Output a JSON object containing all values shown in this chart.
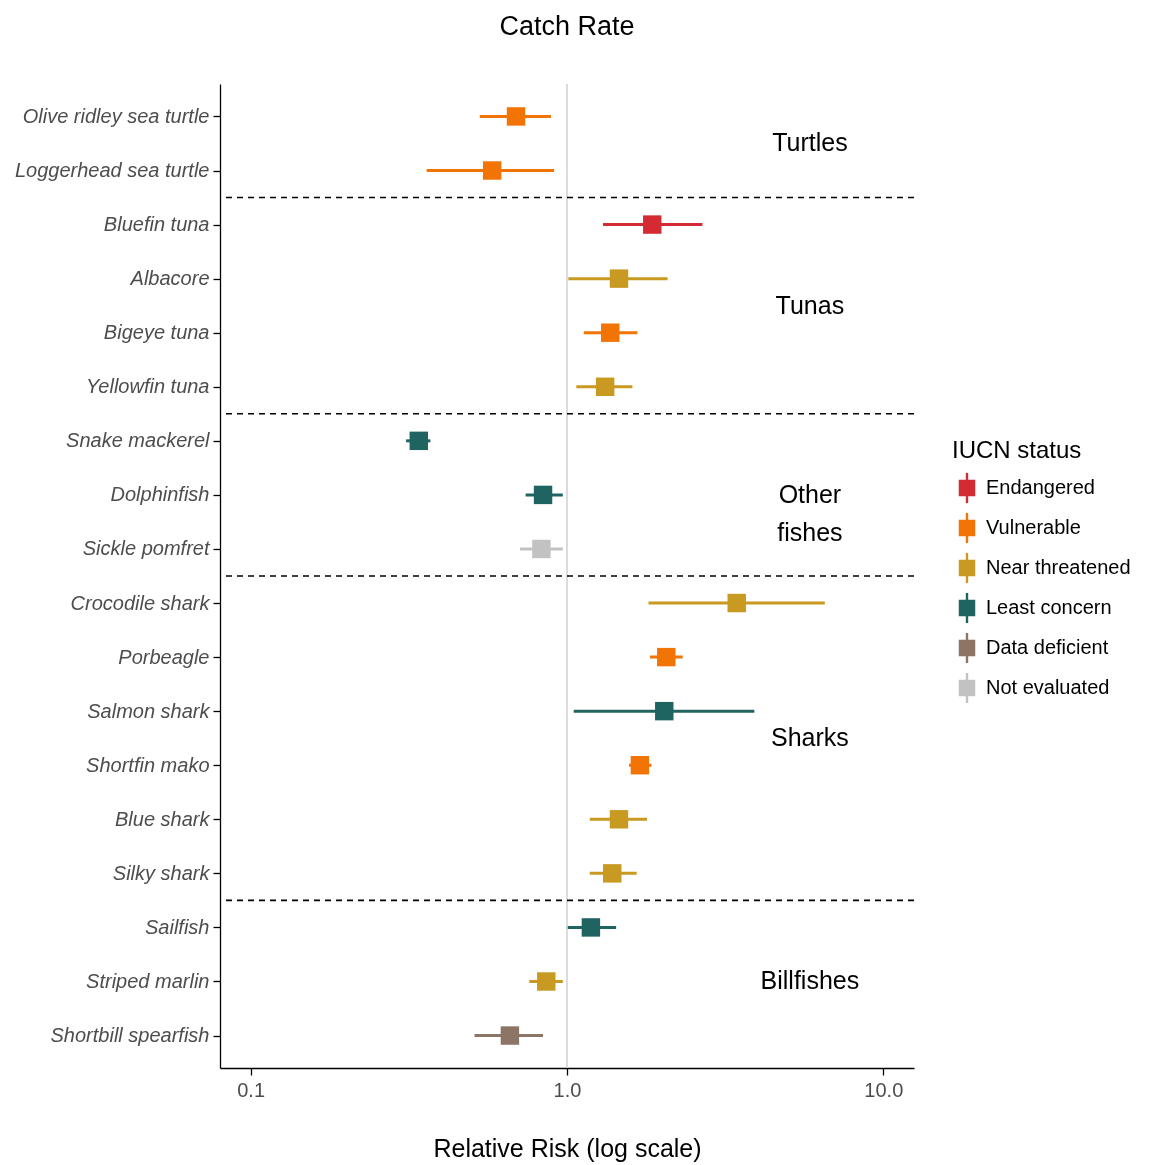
{
  "chart_data": {
    "type": "scatter",
    "orientation": "horizontal",
    "title": "Catch Rate",
    "xlabel": "Relative Risk (log scale)",
    "legend_title": "IUCN status",
    "categories": [
      "Olive ridley sea turtle",
      "Loggerhead sea turtle",
      "Bluefin tuna",
      "Albacore",
      "Bigeye tuna",
      "Yellowfin tuna",
      "Snake mackerel",
      "Dolphinfish",
      "Sickle pomfret",
      "Crocodile shark",
      "Porbeagle",
      "Salmon shark",
      "Shortfin mako",
      "Blue shark",
      "Silky shark",
      "Sailfish",
      "Striped marlin",
      "Shortbill spearfish"
    ],
    "series": [
      {
        "name": "Endangered",
        "color": "#d42a33",
        "values": [
          null,
          null,
          1.86,
          null,
          null,
          null,
          null,
          null,
          null,
          null,
          null,
          null,
          null,
          null,
          null,
          null,
          null,
          null
        ],
        "errors": [
          null,
          null,
          [
            1.3,
            2.68
          ],
          null,
          null,
          null,
          null,
          null,
          null,
          null,
          null,
          null,
          null,
          null,
          null,
          null,
          null,
          null
        ]
      },
      {
        "name": "Vulnerable",
        "color": "#f27405",
        "values": [
          0.69,
          0.58,
          null,
          null,
          1.37,
          null,
          null,
          null,
          null,
          null,
          2.06,
          null,
          1.7,
          null,
          null,
          null,
          null,
          null
        ],
        "errors": [
          [
            0.53,
            0.89
          ],
          [
            0.36,
            0.91
          ],
          null,
          null,
          [
            1.13,
            1.67
          ],
          null,
          null,
          null,
          null,
          null,
          [
            1.83,
            2.32
          ],
          null,
          [
            1.57,
            1.85
          ],
          null,
          null,
          null,
          null,
          null
        ]
      },
      {
        "name": "Near threatened",
        "color": "#c99a22",
        "values": [
          null,
          null,
          null,
          1.46,
          null,
          1.32,
          null,
          null,
          null,
          3.44,
          null,
          null,
          null,
          1.46,
          1.39,
          null,
          0.86,
          null
        ],
        "errors": [
          null,
          null,
          null,
          [
            1.01,
            2.08
          ],
          null,
          [
            1.07,
            1.61
          ],
          null,
          null,
          null,
          [
            1.81,
            6.53
          ],
          null,
          null,
          null,
          [
            1.18,
            1.79
          ],
          [
            1.18,
            1.66
          ],
          null,
          [
            0.76,
            0.97
          ],
          null
        ]
      },
      {
        "name": "Least concern",
        "color": "#206462",
        "values": [
          null,
          null,
          null,
          null,
          null,
          null,
          0.34,
          0.84,
          null,
          null,
          null,
          2.03,
          null,
          null,
          null,
          1.19,
          null,
          null
        ],
        "errors": [
          null,
          null,
          null,
          null,
          null,
          null,
          [
            0.31,
            0.37
          ],
          [
            0.74,
            0.97
          ],
          null,
          null,
          null,
          [
            1.05,
            3.91
          ],
          null,
          null,
          null,
          [
            1.0,
            1.43
          ],
          null,
          null
        ]
      },
      {
        "name": "Data deficient",
        "color": "#8c7565",
        "values": [
          null,
          null,
          null,
          null,
          null,
          null,
          null,
          null,
          null,
          null,
          null,
          null,
          null,
          null,
          null,
          null,
          null,
          0.66
        ],
        "errors": [
          null,
          null,
          null,
          null,
          null,
          null,
          null,
          null,
          null,
          null,
          null,
          null,
          null,
          null,
          null,
          null,
          null,
          [
            0.51,
            0.84
          ]
        ]
      },
      {
        "name": "Not evaluated",
        "color": "#c2c2c2",
        "values": [
          null,
          null,
          null,
          null,
          null,
          null,
          null,
          null,
          0.83,
          null,
          null,
          null,
          null,
          null,
          null,
          null,
          null,
          null
        ],
        "errors": [
          null,
          null,
          null,
          null,
          null,
          null,
          null,
          null,
          [
            0.71,
            0.97
          ],
          null,
          null,
          null,
          null,
          null,
          null,
          null,
          null,
          null
        ]
      }
    ],
    "xlim": [
      0.08,
      12.5
    ],
    "xticks": [
      0.1,
      {
        "value": 1,
        "label": "1.0"
      },
      {
        "value": 10,
        "label": "10.0"
      }
    ],
    "log": "x",
    "grid": false,
    "legend": "right",
    "marker": "square",
    "ref_lines": [
      {
        "axis": "x",
        "value": 1,
        "color": "#d3d3d3",
        "line_style": "solid"
      }
    ],
    "annotations": [
      "Turtles",
      "Tunas",
      "Other fishes",
      "Sharks",
      "Billfishes"
    ]
  }
}
